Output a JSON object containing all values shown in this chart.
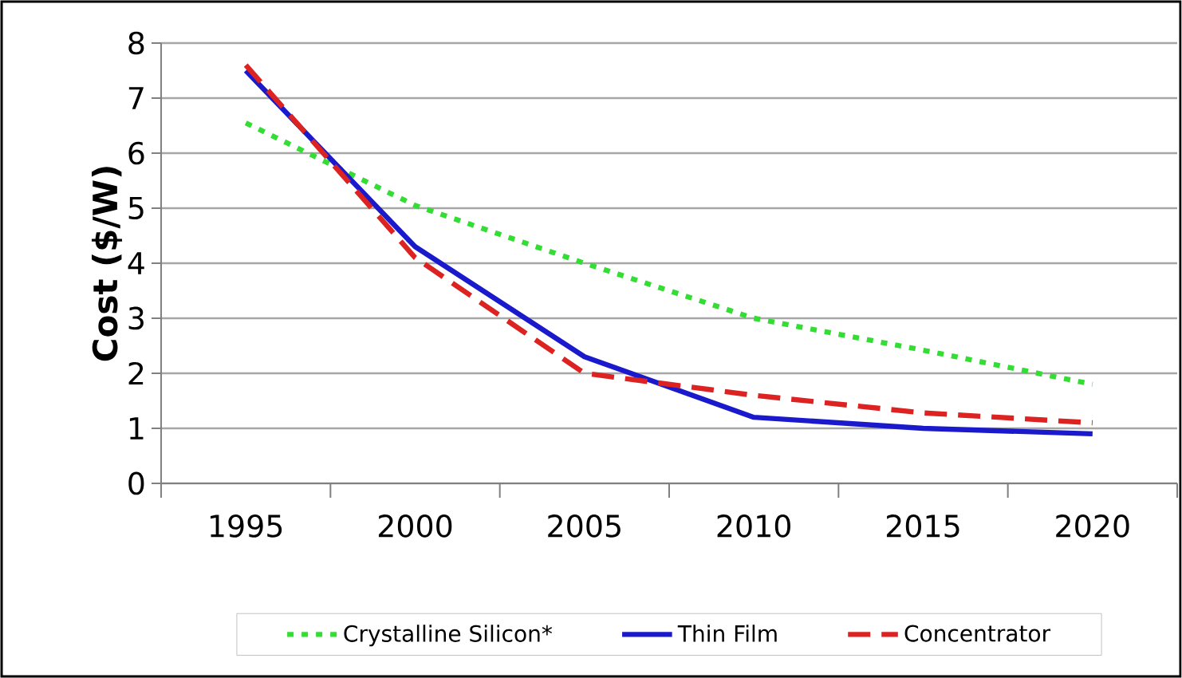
{
  "chart_data": {
    "type": "line",
    "ylabel": "Cost ($/W)",
    "categories": [
      "1995",
      "2000",
      "2005",
      "2010",
      "2015",
      "2020"
    ],
    "ylim": [
      0,
      8
    ],
    "yticks": [
      0,
      1,
      2,
      3,
      4,
      5,
      6,
      7,
      8
    ],
    "grid": "y",
    "legend": "bottom",
    "marker": "none",
    "series": [
      {
        "name": "Crystalline Silicon*",
        "color": "#33dd33",
        "line_style": "dotted",
        "values": [
          6.55,
          5.05,
          4.0,
          3.0,
          2.42,
          1.8
        ]
      },
      {
        "name": "Thin Film",
        "color": "#1a1acc",
        "line_style": "solid",
        "values": [
          7.5,
          4.3,
          2.3,
          1.2,
          1.0,
          0.9
        ]
      },
      {
        "name": "Concentrator",
        "color": "#dd2222",
        "line_style": "dashed",
        "values": [
          7.6,
          4.1,
          2.0,
          1.6,
          1.28,
          1.1
        ]
      }
    ]
  }
}
